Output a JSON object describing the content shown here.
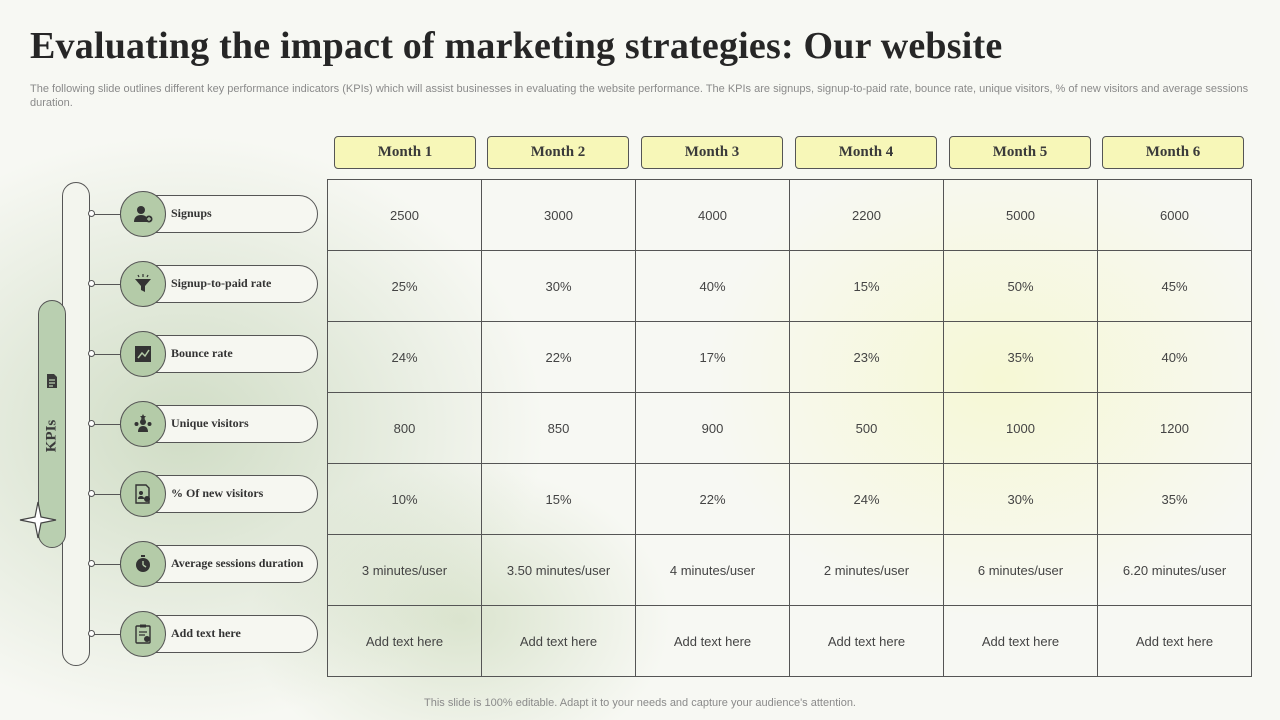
{
  "title": "Evaluating the impact of marketing strategies: Our website",
  "subtitle": "The following slide outlines different key performance indicators (KPIs) which will assist businesses in evaluating the website performance. The KPIs are signups, signup-to-paid rate, bounce rate, unique visitors, % of new visitors and average sessions duration.",
  "footer": "This slide is 100% editable. Adapt it to your needs and capture your audience's attention.",
  "kpi_pill_label": "KPIs",
  "months": [
    "Month 1",
    "Month 2",
    "Month 3",
    "Month 4",
    "Month 5",
    "Month 6"
  ],
  "rows": [
    {
      "label": "Signups",
      "icon": "user-plus-icon",
      "values": [
        "2500",
        "3000",
        "4000",
        "2200",
        "5000",
        "6000"
      ]
    },
    {
      "label": "Signup-to-paid rate",
      "icon": "funnel-icon",
      "values": [
        "25%",
        "30%",
        "40%",
        "15%",
        "50%",
        "45%"
      ]
    },
    {
      "label": "Bounce rate",
      "icon": "chart-arrow-icon",
      "values": [
        "24%",
        "22%",
        "17%",
        "23%",
        "35%",
        "40%"
      ]
    },
    {
      "label": "Unique visitors",
      "icon": "users-star-icon",
      "values": [
        "800",
        "850",
        "900",
        "500",
        "1000",
        "1200"
      ]
    },
    {
      "label": "% Of new visitors",
      "icon": "document-users-icon",
      "values": [
        "10%",
        "15%",
        "22%",
        "24%",
        "30%",
        "35%"
      ]
    },
    {
      "label": "Average sessions duration",
      "icon": "stopwatch-icon",
      "values": [
        "3 minutes/user",
        "3.50 minutes/user",
        "4 minutes/user",
        "2 minutes/user",
        "6 minutes/user",
        "6.20 minutes/user"
      ]
    },
    {
      "label": "Add  text here",
      "icon": "clipboard-check-icon",
      "values": [
        "Add text here",
        "Add text here",
        "Add text here",
        "Add text here",
        "Add text here",
        "Add text here"
      ]
    }
  ],
  "colors": {
    "accent_green": "#b4cba8",
    "header_yellow": "#f7f7b8",
    "border": "#555555"
  }
}
